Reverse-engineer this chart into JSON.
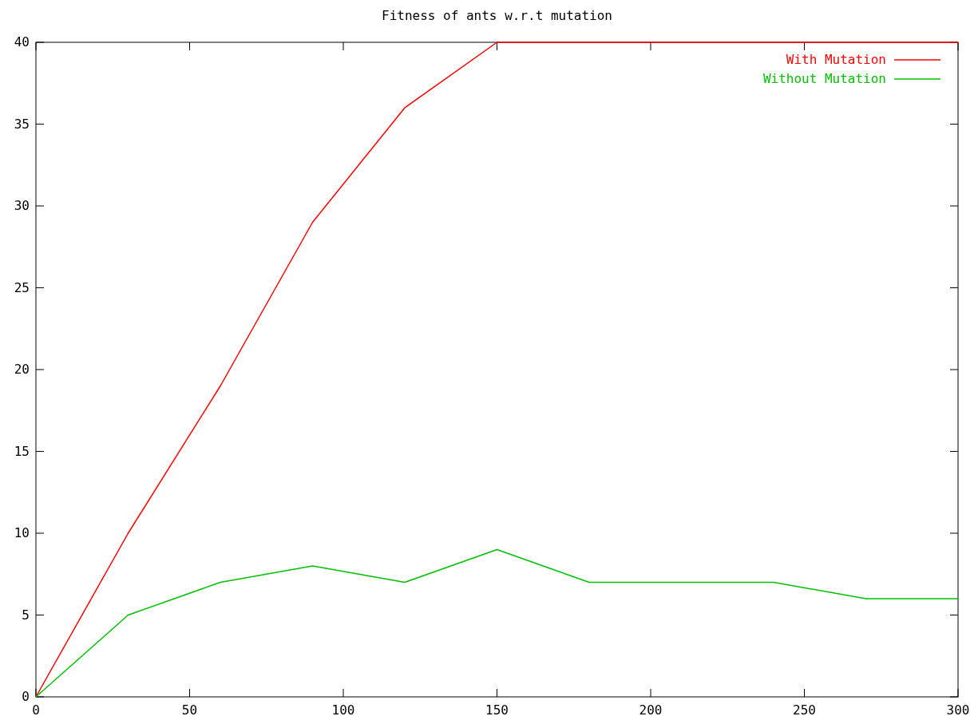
{
  "chart_data": {
    "type": "line",
    "title": "Fitness of ants w.r.t mutation",
    "x": [
      0,
      30,
      60,
      90,
      120,
      150,
      180,
      210,
      240,
      270,
      300
    ],
    "series": [
      {
        "name": "With Mutation",
        "color": "#ff0000",
        "values": [
          0,
          10,
          19,
          29,
          36,
          40,
          40,
          40,
          40,
          40,
          40
        ]
      },
      {
        "name": "Without Mutation",
        "color": "#00c000",
        "values": [
          0,
          5,
          7,
          8,
          7,
          9,
          7,
          7,
          7,
          6,
          6
        ]
      }
    ],
    "xlim": [
      0,
      300
    ],
    "xticks": [
      0,
      50,
      100,
      150,
      200,
      250,
      300
    ],
    "ylim": [
      0,
      40
    ],
    "yticks": [
      0,
      5,
      10,
      15,
      20,
      25,
      30,
      35,
      40
    ],
    "legend": "top right",
    "grid": false,
    "marker": "none",
    "line_style": "solid"
  }
}
